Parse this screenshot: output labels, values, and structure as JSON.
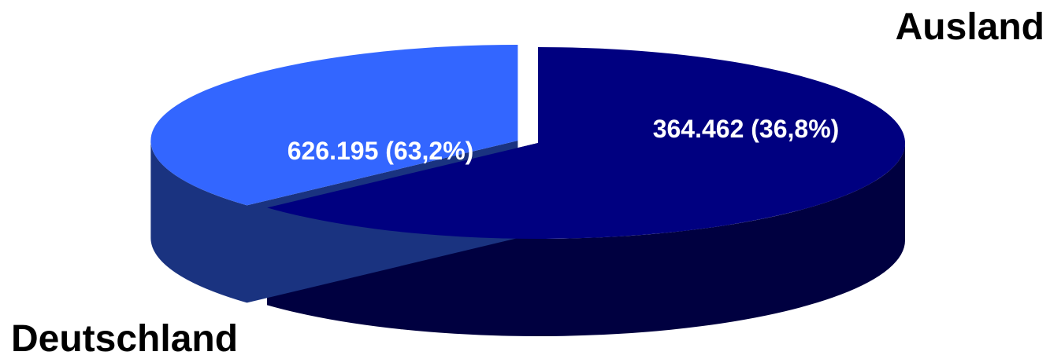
{
  "chart_data": {
    "type": "pie",
    "style": "3d",
    "categories": [
      "Deutschland",
      "Ausland"
    ],
    "values": [
      626195,
      364462
    ],
    "data_labels": [
      "626.195 (63,2%)",
      "364.462 (36,8%)"
    ],
    "colors": {
      "Deutschland": {
        "top": "#000080",
        "side": "#000040"
      },
      "Ausland": {
        "top": "#3366ff",
        "side": "#1a3380"
      }
    },
    "exploded_slice": "Ausland",
    "legend": "none"
  }
}
